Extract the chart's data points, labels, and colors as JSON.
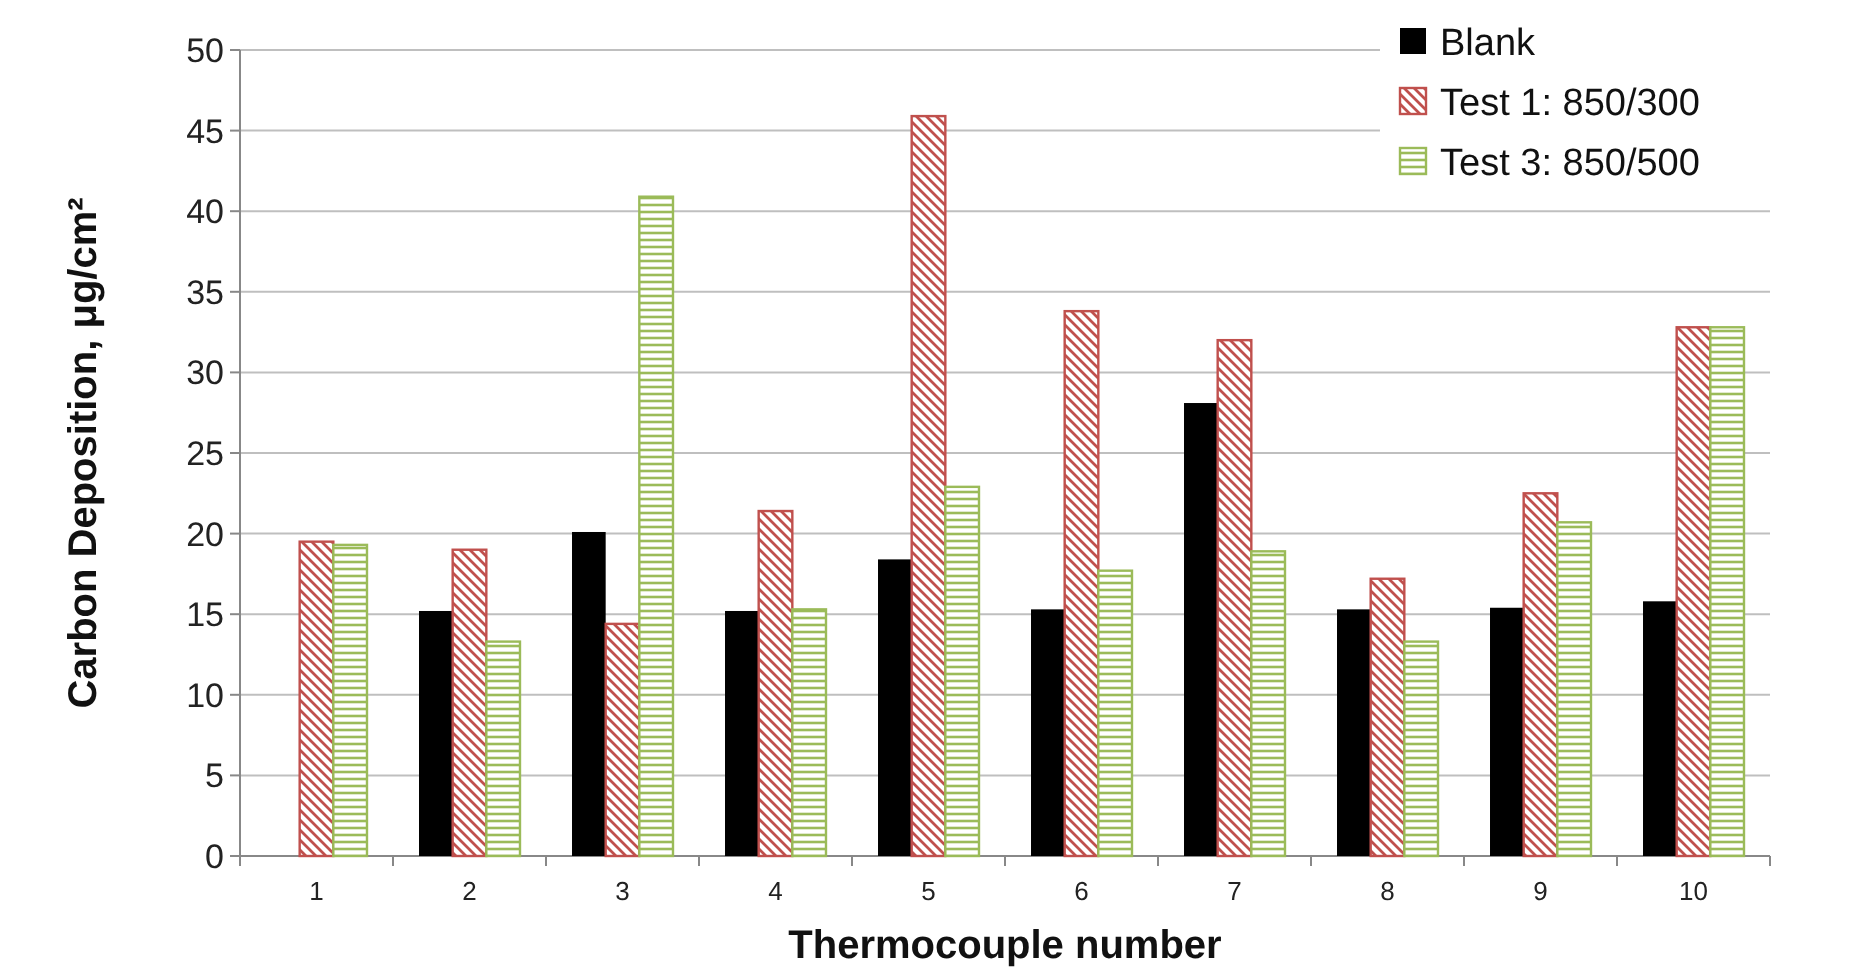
{
  "chart_data": {
    "type": "bar",
    "xlabel": "Thermocouple number",
    "ylabel": "Carbon Deposition, μg/cm²",
    "categories": [
      "1",
      "2",
      "3",
      "4",
      "5",
      "6",
      "7",
      "8",
      "9",
      "10"
    ],
    "series": [
      {
        "name": "Blank",
        "color": "#000000",
        "values": [
          null,
          15.2,
          20.1,
          15.2,
          18.4,
          15.3,
          28.1,
          15.3,
          15.4,
          15.8
        ]
      },
      {
        "name": "Test 1: 850/300",
        "color": "#c0504d",
        "values": [
          19.5,
          19.0,
          14.4,
          21.4,
          45.9,
          33.8,
          32.0,
          17.2,
          22.5,
          32.8
        ]
      },
      {
        "name": "Test 3: 850/500",
        "color": "#9bbb59",
        "values": [
          19.3,
          13.3,
          40.9,
          15.3,
          22.9,
          17.7,
          18.9,
          13.3,
          20.7,
          32.8
        ]
      }
    ],
    "ylim": [
      0,
      50
    ],
    "yticks": [
      0,
      5,
      10,
      15,
      20,
      25,
      30,
      35,
      40,
      45,
      50
    ],
    "grid": "y",
    "legend": "top right"
  }
}
